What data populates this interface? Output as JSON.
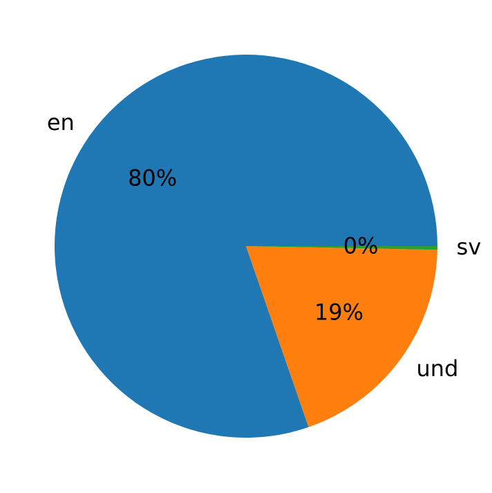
{
  "chart_data": {
    "type": "pie",
    "categories": [
      "en",
      "und",
      "sv"
    ],
    "values": [
      80.3,
      19.4,
      0.3
    ],
    "value_labels": [
      "80%",
      "19%",
      "0%"
    ],
    "colors": [
      "#1f77b4",
      "#ff7f0e",
      "#2ca02c"
    ]
  }
}
